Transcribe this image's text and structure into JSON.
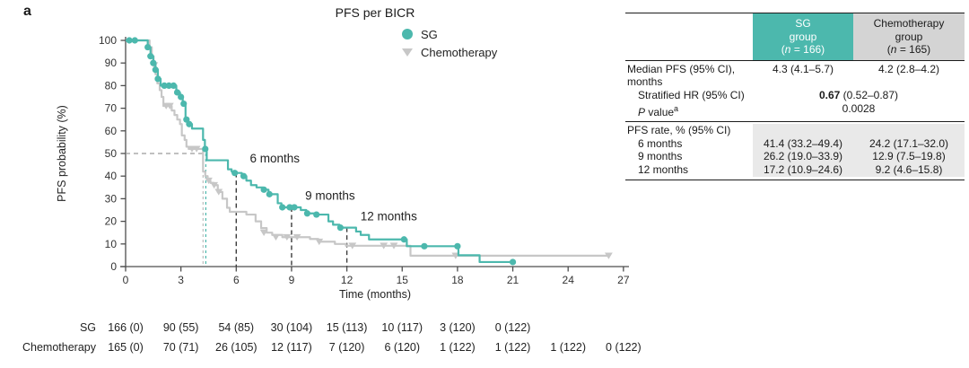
{
  "panel_label": "a",
  "chart": {
    "title": "PFS per BICR"
  },
  "axes": {
    "x_label": "Time (months)",
    "y_label": "PFS probability (%)"
  },
  "legend": [
    {
      "label": "SG",
      "marker": "circle-icon",
      "color": "#4cb8ad"
    },
    {
      "label": "Chemotherapy",
      "marker": "triangle-down-icon",
      "color": "#c7c7c7"
    }
  ],
  "colors": {
    "sg_teal": "#4cb8ad",
    "chemo_gray": "#c7c7c7",
    "header_gray": "#d4d4d4",
    "section_shade": "#e9e9e9",
    "dashed_black": "#3c3c3c",
    "dashed_gray": "#9a9a9a",
    "median_gray_dash": "#bdbdbd"
  },
  "chart_data": {
    "type": "line",
    "subtype": "kaplan-meier-step",
    "title": "PFS per BICR",
    "xlabel": "Time (months)",
    "ylabel": "PFS probability (%)",
    "xlim": [
      0,
      27
    ],
    "ylim": [
      0,
      100
    ],
    "x_ticks": [
      0,
      3,
      6,
      9,
      12,
      15,
      18,
      21,
      24,
      27
    ],
    "y_ticks": [
      0,
      10,
      20,
      30,
      40,
      50,
      60,
      70,
      80,
      90,
      100
    ],
    "grid": false,
    "legend_position": "top-right-inside",
    "series": [
      {
        "name": "SG",
        "color": "#4cb8ad",
        "marker": "circle",
        "median_months": 4.3,
        "rate_6mo": 41.4,
        "rate_9mo": 26.2,
        "rate_12mo": 17.2,
        "steps": [
          [
            0,
            100
          ],
          [
            1.2,
            97
          ],
          [
            1.35,
            93
          ],
          [
            1.5,
            90
          ],
          [
            1.62,
            87
          ],
          [
            1.75,
            83
          ],
          [
            1.9,
            80
          ],
          [
            2.75,
            77
          ],
          [
            2.95,
            75
          ],
          [
            3.1,
            72
          ],
          [
            3.25,
            65
          ],
          [
            3.4,
            63
          ],
          [
            3.6,
            61
          ],
          [
            4.2,
            56
          ],
          [
            4.3,
            52
          ],
          [
            4.4,
            47
          ],
          [
            5.55,
            43
          ],
          [
            5.75,
            42
          ],
          [
            5.9,
            41.4
          ],
          [
            6.3,
            40
          ],
          [
            6.55,
            38
          ],
          [
            6.8,
            36
          ],
          [
            7.1,
            35
          ],
          [
            7.45,
            34
          ],
          [
            7.75,
            32
          ],
          [
            8.25,
            28
          ],
          [
            8.45,
            26.2
          ],
          [
            9.5,
            25
          ],
          [
            9.8,
            23.5
          ],
          [
            10.3,
            23
          ],
          [
            11.0,
            20
          ],
          [
            11.25,
            18.5
          ],
          [
            11.6,
            17.2
          ],
          [
            12.5,
            15.5
          ],
          [
            12.75,
            14
          ],
          [
            13.2,
            12
          ],
          [
            15.25,
            9
          ],
          [
            18.05,
            5
          ],
          [
            19.2,
            2
          ]
        ],
        "end_x": 21,
        "censor_marks": [
          [
            0.2,
            100
          ],
          [
            0.5,
            100
          ],
          [
            1.2,
            97
          ],
          [
            1.35,
            93
          ],
          [
            1.5,
            90
          ],
          [
            1.62,
            87
          ],
          [
            1.75,
            83
          ],
          [
            2.1,
            80
          ],
          [
            2.35,
            80
          ],
          [
            2.6,
            80
          ],
          [
            2.8,
            77
          ],
          [
            3.0,
            75
          ],
          [
            3.15,
            72
          ],
          [
            3.3,
            65
          ],
          [
            3.45,
            63
          ],
          [
            4.32,
            52
          ],
          [
            5.92,
            41.4
          ],
          [
            6.4,
            40
          ],
          [
            7.5,
            34
          ],
          [
            7.8,
            32
          ],
          [
            8.5,
            26.2
          ],
          [
            8.9,
            26.2
          ],
          [
            9.15,
            26.2
          ],
          [
            9.85,
            23.5
          ],
          [
            10.35,
            23
          ],
          [
            11.65,
            17.2
          ],
          [
            15.1,
            12
          ],
          [
            16.2,
            9
          ],
          [
            18.0,
            9
          ],
          [
            21,
            2
          ]
        ]
      },
      {
        "name": "Chemotherapy",
        "color": "#c7c7c7",
        "marker": "triangle-down",
        "median_months": 4.2,
        "rate_6mo": 24.2,
        "rate_9mo": 12.9,
        "rate_12mo": 9.2,
        "steps": [
          [
            0,
            100
          ],
          [
            1.3,
            97
          ],
          [
            1.42,
            93
          ],
          [
            1.52,
            89
          ],
          [
            1.62,
            85
          ],
          [
            1.72,
            81
          ],
          [
            1.85,
            78
          ],
          [
            1.95,
            75
          ],
          [
            2.05,
            71
          ],
          [
            2.5,
            69
          ],
          [
            2.65,
            67
          ],
          [
            2.8,
            65
          ],
          [
            2.95,
            63
          ],
          [
            3.05,
            58
          ],
          [
            3.2,
            56
          ],
          [
            3.3,
            53
          ],
          [
            3.42,
            52
          ],
          [
            4.2,
            42
          ],
          [
            4.32,
            40
          ],
          [
            4.45,
            38
          ],
          [
            4.6,
            37
          ],
          [
            4.78,
            36
          ],
          [
            5.0,
            33
          ],
          [
            5.25,
            30
          ],
          [
            5.5,
            26
          ],
          [
            5.65,
            24.2
          ],
          [
            6.55,
            23
          ],
          [
            7.05,
            20
          ],
          [
            7.35,
            17
          ],
          [
            7.65,
            15
          ],
          [
            7.95,
            14
          ],
          [
            8.5,
            13
          ],
          [
            10.0,
            12.2
          ],
          [
            10.45,
            11
          ],
          [
            11.35,
            10
          ],
          [
            11.95,
            9.2
          ],
          [
            15.45,
            4.8
          ]
        ],
        "end_x": 26.2,
        "censor_marks": [
          [
            1.55,
            89
          ],
          [
            2.2,
            71
          ],
          [
            2.4,
            71
          ],
          [
            3.6,
            52
          ],
          [
            3.85,
            52
          ],
          [
            4.5,
            38
          ],
          [
            4.8,
            36
          ],
          [
            5.05,
            33
          ],
          [
            7.5,
            15
          ],
          [
            8.15,
            13
          ],
          [
            8.75,
            13
          ],
          [
            9.3,
            13
          ],
          [
            10.5,
            11
          ],
          [
            12.3,
            9.2
          ],
          [
            14.0,
            9.2
          ],
          [
            14.55,
            9.2
          ],
          [
            17.9,
            4.8
          ],
          [
            26.2,
            4.8
          ]
        ]
      }
    ],
    "reference_lines": [
      {
        "orient": "h",
        "y": 50,
        "x0": 0,
        "x1": 4.4,
        "color": "#9a9a9a",
        "dash": "5 4",
        "width": 1.2
      },
      {
        "orient": "v",
        "x": 4.2,
        "y_top": 50,
        "color": "#bdbdbd",
        "dash": "3 3",
        "width": 1.2
      },
      {
        "orient": "v",
        "x": 4.35,
        "y_top": 50,
        "color": "#4cb8ad",
        "dash": "3 3",
        "width": 1.2
      },
      {
        "orient": "v",
        "x": 6,
        "y_top": 41.4,
        "color": "#3c3c3c",
        "dash": "5 3.5",
        "width": 1.4
      },
      {
        "orient": "v",
        "x": 9,
        "y_top": 26.2,
        "color": "#3c3c3c",
        "dash": "5 3.5",
        "width": 1.4
      },
      {
        "orient": "v",
        "x": 12,
        "y_top": 17.2,
        "color": "#3c3c3c",
        "dash": "5 3.5",
        "width": 1.4
      }
    ],
    "annotations": [
      {
        "text": "6 months",
        "x": 6.35,
        "y": 46
      },
      {
        "text": "9 months",
        "x": 9.35,
        "y": 29.5
      },
      {
        "text": "12 months",
        "x": 12.35,
        "y": 20.5
      }
    ]
  },
  "risk_table": {
    "time_points": [
      0,
      3,
      6,
      9,
      12,
      15,
      18,
      21,
      24,
      27
    ],
    "rows": [
      {
        "label": "SG",
        "values": [
          "166 (0)",
          "90 (55)",
          "54 (85)",
          "30 (104)",
          "15 (113)",
          "10 (117)",
          "3 (120)",
          "0 (122)"
        ]
      },
      {
        "label": "Chemotherapy",
        "values": [
          "165 (0)",
          "70 (71)",
          "26 (105)",
          "12 (117)",
          "7 (120)",
          "6 (120)",
          "1 (122)",
          "1 (122)",
          "1 (122)",
          "0 (122)"
        ]
      }
    ]
  },
  "stats_table": {
    "columns": [
      {
        "line1": "SG",
        "line2": "group",
        "n_pre": "(",
        "n_italic": "n",
        "n_post": " = 166)"
      },
      {
        "line1": "Chemotherapy",
        "line2": "group",
        "n_pre": "(",
        "n_italic": "n",
        "n_post": " = 165)"
      }
    ],
    "median_row": {
      "label": "Median PFS (95% CI), months",
      "sg": "4.3 (4.1–5.7)",
      "chemo": "4.2 (2.8–4.2)"
    },
    "hr_row": {
      "label": "Stratified HR (95% CI)",
      "value_bold": "0.67",
      "value_rest": " (0.52–0.87)"
    },
    "p_row": {
      "label_italic": "P",
      "label_rest": " value",
      "label_sup": "a",
      "value": "0.0028"
    },
    "rate_section": {
      "label": "PFS rate, % (95% CI)",
      "rows": [
        {
          "label": "6 months",
          "sg": "41.4 (33.2–49.4)",
          "chemo": "24.2 (17.1–32.0)"
        },
        {
          "label": "9 months",
          "sg": "26.2 (19.0–33.9)",
          "chemo": "12.9 (7.5–19.8)"
        },
        {
          "label": "12 months",
          "sg": "17.2 (10.9–24.6)",
          "chemo": "9.2 (4.6–15.8)"
        }
      ]
    }
  }
}
